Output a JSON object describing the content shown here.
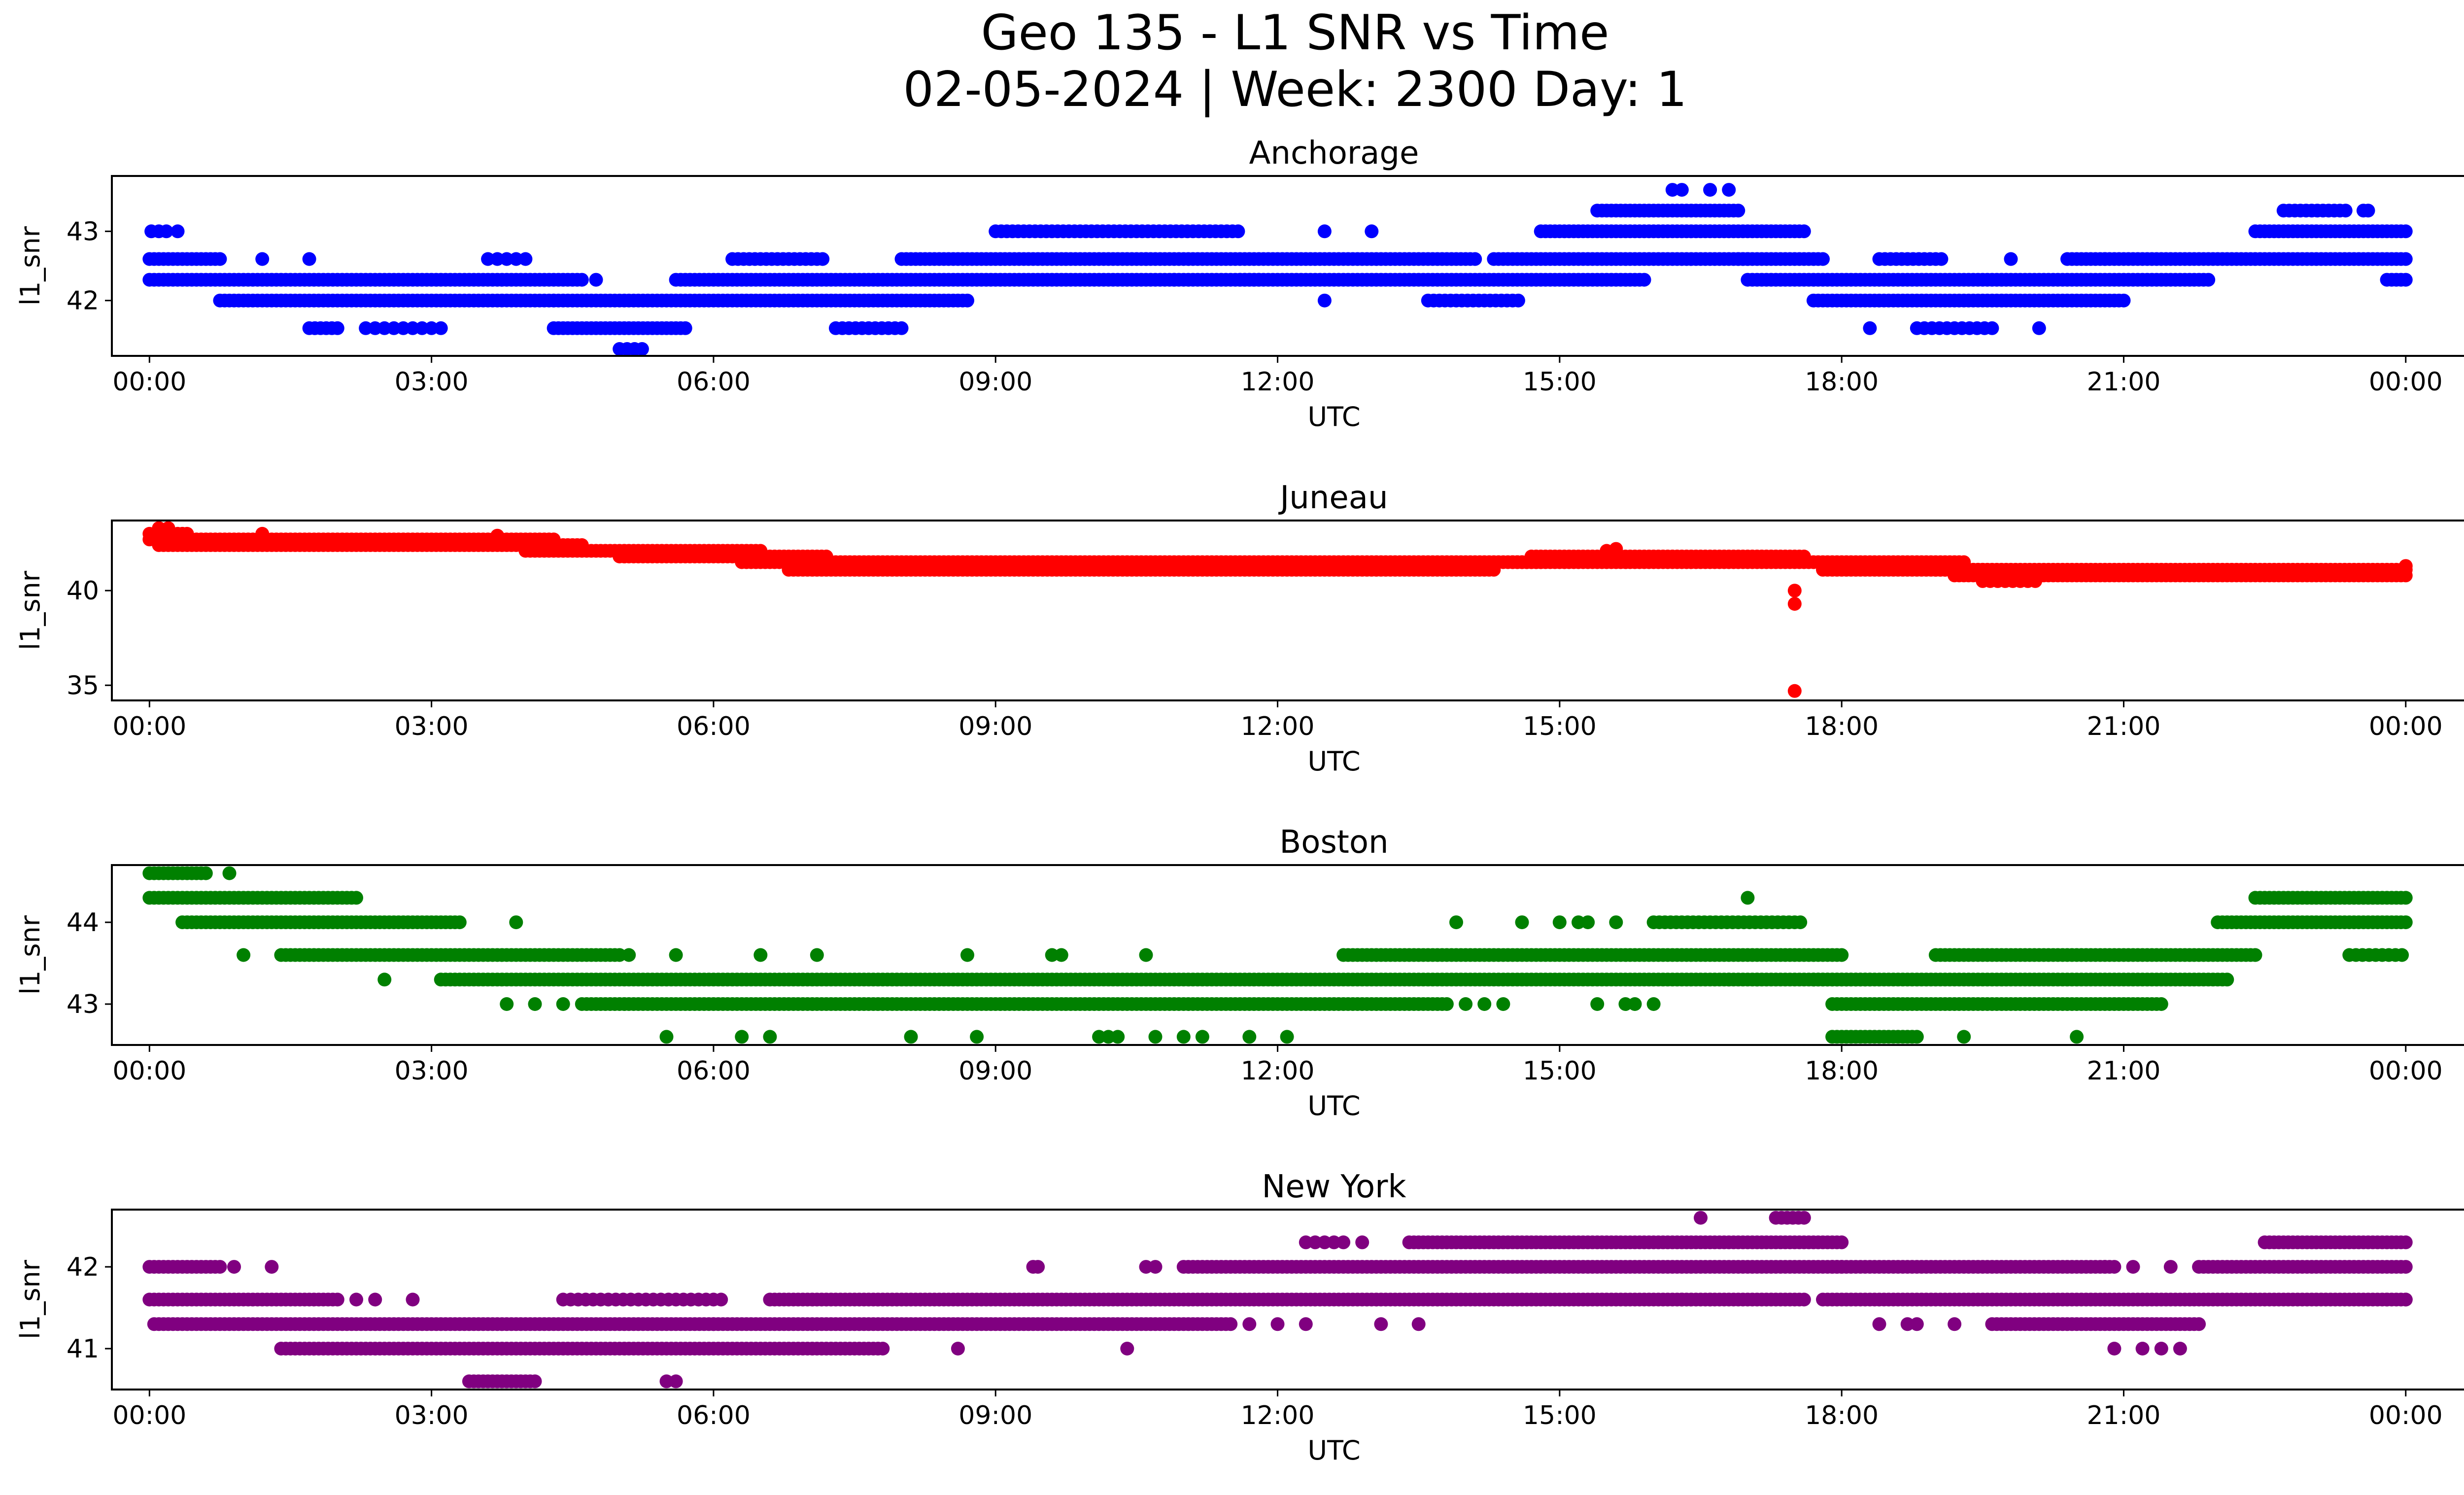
{
  "figure": {
    "title_line1": "Geo 135 - L1 SNR vs Time",
    "title_line2": "02-05-2024 | Week: 2300 Day: 1"
  },
  "chart_data": [
    {
      "type": "scatter",
      "title": "Anchorage",
      "xlabel": "UTC",
      "ylabel": "l1_snr",
      "color": "#0000ff",
      "x_unit": "hours since 00:00 UTC 02-05-2024",
      "xlim": [
        -0.4,
        25.6
      ],
      "xticks": [
        0,
        3,
        6,
        9,
        12,
        15,
        18,
        21,
        24
      ],
      "xtick_labels": [
        "00:00",
        "03:00",
        "06:00",
        "09:00",
        "12:00",
        "15:00",
        "18:00",
        "21:00",
        "00:00"
      ],
      "ylim": [
        41.2,
        43.8
      ],
      "yticks": [
        42,
        43
      ],
      "segments": [
        {
          "y": 43.0,
          "x0": 0.02,
          "x1": 0.2,
          "step": 0.08
        },
        {
          "y": 42.6,
          "x0": 0.0,
          "x1": 0.75,
          "step": 0.05
        },
        {
          "y": 42.3,
          "x0": 0.0,
          "x1": 4.6,
          "step": 0.05
        },
        {
          "y": 42.0,
          "x0": 0.75,
          "x1": 4.3,
          "step": 0.05
        },
        {
          "y": 41.6,
          "x0": 1.7,
          "x1": 2.0,
          "step": 0.06
        },
        {
          "y": 41.6,
          "x0": 2.3,
          "x1": 3.1,
          "step": 0.1
        },
        {
          "y": 42.6,
          "x0": 3.6,
          "x1": 4.0,
          "step": 0.1
        },
        {
          "y": 42.0,
          "x0": 4.3,
          "x1": 8.7,
          "step": 0.05
        },
        {
          "y": 41.6,
          "x0": 4.3,
          "x1": 5.7,
          "step": 0.05
        },
        {
          "y": 41.3,
          "x0": 5.0,
          "x1": 5.3,
          "step": 0.08
        },
        {
          "y": 42.3,
          "x0": 5.6,
          "x1": 11.8,
          "step": 0.05
        },
        {
          "y": 42.6,
          "x0": 6.2,
          "x1": 7.2,
          "step": 0.06
        },
        {
          "y": 41.6,
          "x0": 7.3,
          "x1": 8.0,
          "step": 0.07
        },
        {
          "y": 42.6,
          "x0": 8.0,
          "x1": 14.1,
          "step": 0.05
        },
        {
          "y": 43.0,
          "x0": 9.0,
          "x1": 11.6,
          "step": 0.06
        },
        {
          "y": 42.3,
          "x0": 11.6,
          "x1": 15.9,
          "step": 0.05
        },
        {
          "y": 42.0,
          "x0": 13.6,
          "x1": 14.6,
          "step": 0.06
        },
        {
          "y": 42.6,
          "x0": 14.3,
          "x1": 17.0,
          "step": 0.05
        },
        {
          "y": 43.0,
          "x0": 14.8,
          "x1": 17.6,
          "step": 0.05
        },
        {
          "y": 43.3,
          "x0": 15.4,
          "x1": 16.9,
          "step": 0.05
        },
        {
          "y": 42.6,
          "x0": 16.9,
          "x1": 17.8,
          "step": 0.05
        },
        {
          "y": 42.3,
          "x0": 17.0,
          "x1": 21.9,
          "step": 0.05
        },
        {
          "y": 42.0,
          "x0": 17.7,
          "x1": 21.0,
          "step": 0.05
        },
        {
          "y": 42.6,
          "x0": 18.4,
          "x1": 19.1,
          "step": 0.06
        },
        {
          "y": 41.6,
          "x0": 18.8,
          "x1": 19.6,
          "step": 0.08
        },
        {
          "y": 42.6,
          "x0": 20.4,
          "x1": 24.0,
          "step": 0.05
        },
        {
          "y": 43.0,
          "x0": 22.4,
          "x1": 24.0,
          "step": 0.05
        },
        {
          "y": 43.3,
          "x0": 22.7,
          "x1": 23.4,
          "step": 0.06
        },
        {
          "y": 42.3,
          "x0": 23.8,
          "x1": 24.0,
          "step": 0.05
        }
      ],
      "points": [
        [
          0.3,
          43.0
        ],
        [
          1.2,
          42.6
        ],
        [
          1.7,
          42.6
        ],
        [
          4.75,
          42.3
        ],
        [
          12.5,
          43.0
        ],
        [
          13.0,
          43.0
        ],
        [
          12.5,
          42.0
        ],
        [
          10.9,
          42.3
        ],
        [
          10.6,
          42.6
        ],
        [
          16.2,
          43.6
        ],
        [
          16.3,
          43.6
        ],
        [
          16.6,
          43.6
        ],
        [
          16.8,
          43.6
        ],
        [
          18.3,
          41.6
        ],
        [
          19.8,
          42.6
        ],
        [
          20.1,
          41.6
        ],
        [
          20.8,
          42.6
        ],
        [
          23.6,
          43.3
        ],
        [
          23.55,
          43.3
        ]
      ]
    },
    {
      "type": "scatter",
      "title": "Juneau",
      "xlabel": "UTC",
      "ylabel": "l1_snr",
      "color": "#ff0000",
      "x_unit": "hours since 00:00 UTC 02-05-2024",
      "xlim": [
        -0.4,
        25.6
      ],
      "xticks": [
        0,
        3,
        6,
        9,
        12,
        15,
        18,
        21,
        24
      ],
      "xtick_labels": [
        "00:00",
        "03:00",
        "06:00",
        "09:00",
        "12:00",
        "15:00",
        "18:00",
        "21:00",
        "00:00"
      ],
      "ylim": [
        34.2,
        43.7
      ],
      "yticks": [
        35,
        40
      ],
      "segments": [
        {
          "y": 43.0,
          "x0": 0.0,
          "x1": 0.4,
          "step": 0.05
        },
        {
          "y": 42.7,
          "x0": 0.0,
          "x1": 4.3,
          "step": 0.05
        },
        {
          "y": 42.4,
          "x0": 0.1,
          "x1": 4.6,
          "step": 0.05
        },
        {
          "y": 42.1,
          "x0": 4.0,
          "x1": 6.5,
          "step": 0.05
        },
        {
          "y": 41.8,
          "x0": 5.0,
          "x1": 7.2,
          "step": 0.05
        },
        {
          "y": 41.5,
          "x0": 6.3,
          "x1": 14.8,
          "step": 0.05
        },
        {
          "y": 41.1,
          "x0": 6.8,
          "x1": 14.3,
          "step": 0.05
        },
        {
          "y": 41.5,
          "x0": 14.5,
          "x1": 19.3,
          "step": 0.05
        },
        {
          "y": 41.8,
          "x0": 14.7,
          "x1": 17.6,
          "step": 0.05
        },
        {
          "y": 41.1,
          "x0": 17.8,
          "x1": 19.5,
          "step": 0.05
        },
        {
          "y": 41.1,
          "x0": 19.0,
          "x1": 24.0,
          "step": 0.05
        },
        {
          "y": 40.8,
          "x0": 19.2,
          "x1": 24.0,
          "step": 0.05
        },
        {
          "y": 40.5,
          "x0": 19.5,
          "x1": 20.1,
          "step": 0.08
        }
      ],
      "points": [
        [
          0.1,
          43.3
        ],
        [
          0.2,
          43.3
        ],
        [
          1.2,
          43.0
        ],
        [
          3.7,
          42.9
        ],
        [
          15.5,
          42.1
        ],
        [
          15.6,
          42.2
        ],
        [
          17.5,
          40.0
        ],
        [
          17.5,
          39.3
        ],
        [
          17.5,
          34.7
        ],
        [
          24.0,
          41.3
        ]
      ]
    },
    {
      "type": "scatter",
      "title": "Boston",
      "xlabel": "UTC",
      "ylabel": "l1_snr",
      "color": "#008000",
      "x_unit": "hours since 00:00 UTC 02-05-2024",
      "xlim": [
        -0.4,
        25.6
      ],
      "xticks": [
        0,
        3,
        6,
        9,
        12,
        15,
        18,
        21,
        24
      ],
      "xtick_labels": [
        "00:00",
        "03:00",
        "06:00",
        "09:00",
        "12:00",
        "15:00",
        "18:00",
        "21:00",
        "00:00"
      ],
      "ylim": [
        42.5,
        44.7
      ],
      "yticks": [
        43,
        44
      ],
      "segments": [
        {
          "y": 44.6,
          "x0": 0.0,
          "x1": 0.6,
          "step": 0.05
        },
        {
          "y": 44.3,
          "x0": 0.0,
          "x1": 2.2,
          "step": 0.05
        },
        {
          "y": 44.0,
          "x0": 0.35,
          "x1": 3.3,
          "step": 0.05
        },
        {
          "y": 43.6,
          "x0": 1.4,
          "x1": 5.0,
          "step": 0.05
        },
        {
          "y": 43.3,
          "x0": 3.1,
          "x1": 18.3,
          "step": 0.05
        },
        {
          "y": 43.0,
          "x0": 4.6,
          "x1": 13.8,
          "step": 0.05
        },
        {
          "y": 43.6,
          "x0": 12.7,
          "x1": 18.0,
          "step": 0.05
        },
        {
          "y": 44.0,
          "x0": 16.0,
          "x1": 17.6,
          "step": 0.06
        },
        {
          "y": 43.3,
          "x0": 17.7,
          "x1": 22.1,
          "step": 0.05
        },
        {
          "y": 43.0,
          "x0": 17.9,
          "x1": 21.4,
          "step": 0.05
        },
        {
          "y": 42.6,
          "x0": 17.9,
          "x1": 18.8,
          "step": 0.05
        },
        {
          "y": 43.6,
          "x0": 19.0,
          "x1": 22.4,
          "step": 0.05
        },
        {
          "y": 44.0,
          "x0": 22.0,
          "x1": 24.0,
          "step": 0.05
        },
        {
          "y": 44.3,
          "x0": 22.4,
          "x1": 24.0,
          "step": 0.05
        },
        {
          "y": 43.6,
          "x0": 23.4,
          "x1": 24.0,
          "step": 0.07
        }
      ],
      "points": [
        [
          0.85,
          44.6
        ],
        [
          1.0,
          43.6
        ],
        [
          2.5,
          43.3
        ],
        [
          3.9,
          44.0
        ],
        [
          3.8,
          43.0
        ],
        [
          4.1,
          43.0
        ],
        [
          4.4,
          43.0
        ],
        [
          5.1,
          43.6
        ],
        [
          5.6,
          43.6
        ],
        [
          6.5,
          43.6
        ],
        [
          7.1,
          43.6
        ],
        [
          5.5,
          42.6
        ],
        [
          6.3,
          42.6
        ],
        [
          6.6,
          42.6
        ],
        [
          8.1,
          42.6
        ],
        [
          8.7,
          43.6
        ],
        [
          8.8,
          42.6
        ],
        [
          9.6,
          43.6
        ],
        [
          9.7,
          43.6
        ],
        [
          10.1,
          42.6
        ],
        [
          10.2,
          42.6
        ],
        [
          10.3,
          42.6
        ],
        [
          10.6,
          43.6
        ],
        [
          10.7,
          42.6
        ],
        [
          11.0,
          42.6
        ],
        [
          11.2,
          42.6
        ],
        [
          11.7,
          42.6
        ],
        [
          12.1,
          42.6
        ],
        [
          13.9,
          44.0
        ],
        [
          14.0,
          43.0
        ],
        [
          14.2,
          43.0
        ],
        [
          14.4,
          43.0
        ],
        [
          14.6,
          44.0
        ],
        [
          15.0,
          44.0
        ],
        [
          15.2,
          44.0
        ],
        [
          15.3,
          44.0
        ],
        [
          15.6,
          44.0
        ],
        [
          15.4,
          43.0
        ],
        [
          15.7,
          43.0
        ],
        [
          15.8,
          43.0
        ],
        [
          16.0,
          43.0
        ],
        [
          17.0,
          44.3
        ],
        [
          16.8,
          43.3
        ],
        [
          17.1,
          43.3
        ],
        [
          19.3,
          42.6
        ],
        [
          20.5,
          42.6
        ]
      ]
    },
    {
      "type": "scatter",
      "title": "New York",
      "xlabel": "UTC",
      "ylabel": "l1_snr",
      "color": "#800080",
      "x_unit": "hours since 00:00 UTC 02-05-2024",
      "xlim": [
        -0.4,
        25.6
      ],
      "xticks": [
        0,
        3,
        6,
        9,
        12,
        15,
        18,
        21,
        24
      ],
      "xtick_labels": [
        "00:00",
        "03:00",
        "06:00",
        "09:00",
        "12:00",
        "15:00",
        "18:00",
        "21:00",
        "00:00"
      ],
      "ylim": [
        40.5,
        42.7
      ],
      "yticks": [
        41,
        42
      ],
      "segments": [
        {
          "y": 42.0,
          "x0": 0.0,
          "x1": 0.75,
          "step": 0.05
        },
        {
          "y": 41.6,
          "x0": 0.0,
          "x1": 2.0,
          "step": 0.05
        },
        {
          "y": 41.3,
          "x0": 0.05,
          "x1": 6.0,
          "step": 0.05
        },
        {
          "y": 41.0,
          "x0": 1.4,
          "x1": 7.8,
          "step": 0.05
        },
        {
          "y": 40.6,
          "x0": 3.4,
          "x1": 4.1,
          "step": 0.05
        },
        {
          "y": 41.6,
          "x0": 4.4,
          "x1": 6.1,
          "step": 0.08
        },
        {
          "y": 41.3,
          "x0": 6.0,
          "x1": 11.5,
          "step": 0.05
        },
        {
          "y": 41.6,
          "x0": 6.6,
          "x1": 17.6,
          "step": 0.05
        },
        {
          "y": 42.0,
          "x0": 11.0,
          "x1": 18.0,
          "step": 0.05
        },
        {
          "y": 42.3,
          "x0": 13.4,
          "x1": 18.0,
          "step": 0.05
        },
        {
          "y": 42.3,
          "x0": 12.3,
          "x1": 12.7,
          "step": 0.1
        },
        {
          "y": 41.6,
          "x0": 17.8,
          "x1": 24.0,
          "step": 0.05
        },
        {
          "y": 42.0,
          "x0": 17.9,
          "x1": 20.9,
          "step": 0.05
        },
        {
          "y": 41.3,
          "x0": 19.6,
          "x1": 21.8,
          "step": 0.05
        },
        {
          "y": 42.0,
          "x0": 21.8,
          "x1": 24.0,
          "step": 0.05
        },
        {
          "y": 42.3,
          "x0": 22.5,
          "x1": 24.0,
          "step": 0.05
        },
        {
          "y": 42.6,
          "x0": 17.3,
          "x1": 17.6,
          "step": 0.06
        }
      ],
      "points": [
        [
          0.9,
          42.0
        ],
        [
          1.3,
          42.0
        ],
        [
          2.2,
          41.6
        ],
        [
          2.4,
          41.6
        ],
        [
          2.8,
          41.6
        ],
        [
          5.5,
          40.6
        ],
        [
          5.6,
          40.6
        ],
        [
          8.6,
          41.0
        ],
        [
          9.4,
          42.0
        ],
        [
          9.45,
          42.0
        ],
        [
          10.4,
          41.0
        ],
        [
          10.6,
          42.0
        ],
        [
          10.7,
          42.0
        ],
        [
          11.7,
          41.3
        ],
        [
          12.0,
          41.3
        ],
        [
          12.3,
          41.3
        ],
        [
          13.1,
          41.3
        ],
        [
          13.5,
          41.3
        ],
        [
          12.9,
          42.3
        ],
        [
          16.5,
          42.6
        ],
        [
          16.3,
          41.6
        ],
        [
          16.6,
          41.6
        ],
        [
          18.4,
          41.3
        ],
        [
          18.7,
          41.3
        ],
        [
          18.8,
          41.3
        ],
        [
          19.2,
          41.3
        ],
        [
          20.8,
          42.0
        ],
        [
          21.1,
          42.0
        ],
        [
          21.5,
          42.0
        ],
        [
          20.9,
          41.0
        ],
        [
          21.2,
          41.0
        ],
        [
          21.4,
          41.0
        ],
        [
          21.6,
          41.0
        ],
        [
          24.0,
          41.6
        ],
        [
          23.8,
          41.6
        ]
      ]
    }
  ]
}
